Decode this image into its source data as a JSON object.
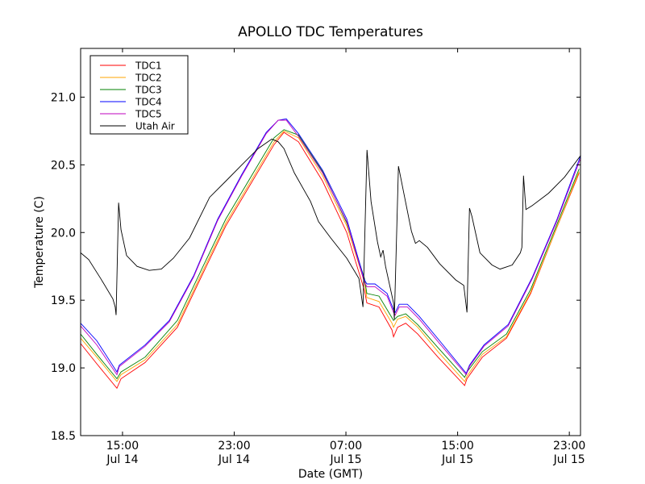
{
  "chart_data": {
    "type": "line",
    "title": "APOLLO TDC Temperatures",
    "xlabel": "Date (GMT)",
    "ylabel": "Temperature (C)",
    "x_units": "hours since 12:00 Jul 14",
    "xlim": [
      0,
      35.8
    ],
    "ylim": [
      18.5,
      21.36
    ],
    "grid": false,
    "legend_position": "top-left",
    "xticks": [
      {
        "t": 3,
        "line1": "15:00",
        "line2": "Jul 14"
      },
      {
        "t": 11,
        "line1": "23:00",
        "line2": "Jul 14"
      },
      {
        "t": 19,
        "line1": "07:00",
        "line2": "Jul 15"
      },
      {
        "t": 27,
        "line1": "15:00",
        "line2": "Jul 15"
      },
      {
        "t": 35,
        "line1": "23:00",
        "line2": "Jul 15"
      }
    ],
    "yticks": [
      {
        "v": 18.5,
        "label": "18.5"
      },
      {
        "v": 19.0,
        "label": "19.0"
      },
      {
        "v": 19.5,
        "label": "19.5"
      },
      {
        "v": 20.0,
        "label": "20.0"
      },
      {
        "v": 20.5,
        "label": "20.5"
      },
      {
        "v": 21.0,
        "label": "21.0"
      }
    ],
    "series": [
      {
        "name": "TDC1",
        "color": "#ff0000",
        "x": [
          0,
          1.16,
          2.6,
          2.89,
          4.62,
          6.93,
          8.67,
          10.4,
          12.13,
          13.86,
          14.56,
          15.6,
          17.33,
          19.06,
          20.33,
          20.5,
          21.37,
          22.3,
          22.41,
          22.7,
          23.28,
          24.14,
          25.59,
          27.5,
          27.67,
          28.77,
          30.5,
          32.23,
          33.96,
          35.7
        ],
        "y": [
          19.18,
          19.03,
          18.85,
          18.92,
          19.04,
          19.3,
          19.68,
          20.05,
          20.35,
          20.65,
          20.74,
          20.67,
          20.38,
          20.0,
          19.57,
          19.48,
          19.45,
          19.28,
          19.23,
          19.3,
          19.33,
          19.25,
          19.08,
          18.87,
          18.92,
          19.08,
          19.22,
          19.55,
          20.0,
          20.44
        ]
      },
      {
        "name": "TDC2",
        "color": "#ffa500",
        "x": [
          0,
          1.16,
          2.6,
          2.89,
          4.62,
          6.93,
          8.67,
          10.4,
          12.13,
          13.86,
          14.56,
          15.6,
          17.33,
          19.06,
          20.33,
          20.5,
          21.37,
          22.3,
          22.41,
          22.7,
          23.28,
          24.14,
          25.59,
          27.5,
          27.67,
          28.77,
          30.5,
          32.23,
          33.96,
          35.7
        ],
        "y": [
          19.22,
          19.08,
          18.9,
          18.95,
          19.06,
          19.32,
          19.7,
          20.07,
          20.37,
          20.67,
          20.75,
          20.7,
          20.42,
          20.05,
          19.63,
          19.52,
          19.49,
          19.33,
          19.3,
          19.36,
          19.38,
          19.3,
          19.12,
          18.9,
          18.94,
          19.1,
          19.23,
          19.56,
          20.0,
          20.45
        ]
      },
      {
        "name": "TDC3",
        "color": "#008000",
        "x": [
          0,
          1.16,
          2.6,
          2.89,
          4.62,
          6.93,
          8.67,
          10.4,
          12.13,
          13.86,
          14.56,
          15.6,
          17.33,
          19.06,
          20.33,
          20.5,
          21.37,
          22.3,
          22.41,
          22.7,
          23.28,
          24.14,
          25.59,
          27.5,
          27.67,
          28.77,
          30.5,
          32.23,
          33.96,
          35.7
        ],
        "y": [
          19.25,
          19.1,
          18.92,
          18.97,
          19.08,
          19.35,
          19.73,
          20.1,
          20.4,
          20.7,
          20.76,
          20.72,
          20.45,
          20.07,
          19.66,
          19.55,
          19.53,
          19.37,
          19.35,
          19.38,
          19.4,
          19.32,
          19.15,
          18.93,
          18.97,
          19.12,
          19.25,
          19.58,
          20.02,
          20.47
        ]
      },
      {
        "name": "TDC4",
        "color": "#0000ff",
        "x": [
          0,
          1.16,
          2.6,
          2.77,
          4.62,
          6.35,
          8.09,
          9.82,
          11.55,
          13.29,
          14.15,
          14.73,
          15.6,
          17.33,
          19.06,
          20.33,
          20.5,
          21.08,
          21.95,
          22.41,
          22.53,
          22.82,
          23.4,
          24.26,
          25.71,
          27.62,
          27.85,
          28.89,
          30.62,
          32.35,
          34.09,
          35.82
        ],
        "y": [
          19.33,
          19.2,
          18.97,
          19.02,
          19.17,
          19.35,
          19.68,
          20.1,
          20.43,
          20.74,
          20.83,
          20.84,
          20.73,
          20.46,
          20.1,
          19.65,
          19.62,
          19.62,
          19.55,
          19.43,
          19.41,
          19.47,
          19.47,
          19.38,
          19.2,
          18.96,
          19.02,
          19.17,
          19.32,
          19.67,
          20.09,
          20.57
        ]
      },
      {
        "name": "TDC5",
        "color": "#bf00bf",
        "x": [
          0,
          1.16,
          2.6,
          2.77,
          4.62,
          6.35,
          8.09,
          9.82,
          11.55,
          13.29,
          14.15,
          14.73,
          15.6,
          17.33,
          19.06,
          20.33,
          20.5,
          21.08,
          21.95,
          22.41,
          22.53,
          22.82,
          23.4,
          24.26,
          25.71,
          27.62,
          27.85,
          28.89,
          30.62,
          32.35,
          34.09,
          35.82
        ],
        "y": [
          19.31,
          19.17,
          18.95,
          19.01,
          19.16,
          19.34,
          19.67,
          20.09,
          20.42,
          20.73,
          20.83,
          20.83,
          20.71,
          20.44,
          20.08,
          19.63,
          19.6,
          19.6,
          19.53,
          19.41,
          19.39,
          19.45,
          19.45,
          19.36,
          19.18,
          18.95,
          19.01,
          19.16,
          19.31,
          19.66,
          20.08,
          20.55
        ]
      },
      {
        "name": "Utah Air",
        "color": "#000000",
        "x": [
          0,
          0.58,
          1.44,
          2.31,
          2.48,
          2.54,
          2.72,
          2.89,
          3.29,
          4.04,
          4.91,
          5.78,
          6.64,
          7.8,
          9.24,
          10.4,
          11.55,
          12.71,
          13.69,
          14.15,
          14.56,
          15.31,
          16.46,
          17.04,
          17.91,
          19.06,
          19.93,
          20.22,
          20.51,
          20.8,
          21.26,
          21.49,
          21.66,
          21.84,
          22.41,
          22.47,
          22.76,
          23.11,
          23.69,
          23.98,
          24.26,
          24.84,
          25.71,
          26.86,
          27.44,
          27.67,
          27.85,
          28.02,
          28.6,
          29.46,
          30.04,
          30.91,
          31.49,
          31.6,
          31.72,
          31.89,
          32.35,
          33.51,
          34.66,
          35.82
        ],
        "y": [
          19.85,
          19.8,
          19.66,
          19.51,
          19.45,
          19.39,
          20.22,
          20.02,
          19.83,
          19.75,
          19.72,
          19.73,
          19.81,
          19.96,
          20.26,
          20.38,
          20.5,
          20.62,
          20.69,
          20.67,
          20.62,
          20.44,
          20.23,
          20.08,
          19.96,
          19.81,
          19.66,
          19.45,
          20.61,
          20.23,
          19.93,
          19.82,
          19.87,
          19.75,
          19.48,
          19.36,
          20.49,
          20.31,
          20.01,
          19.92,
          19.94,
          19.89,
          19.77,
          19.65,
          19.61,
          19.41,
          20.18,
          20.12,
          19.85,
          19.76,
          19.73,
          19.76,
          19.85,
          19.89,
          20.42,
          20.17,
          20.2,
          20.29,
          20.41,
          20.57
        ]
      }
    ]
  }
}
